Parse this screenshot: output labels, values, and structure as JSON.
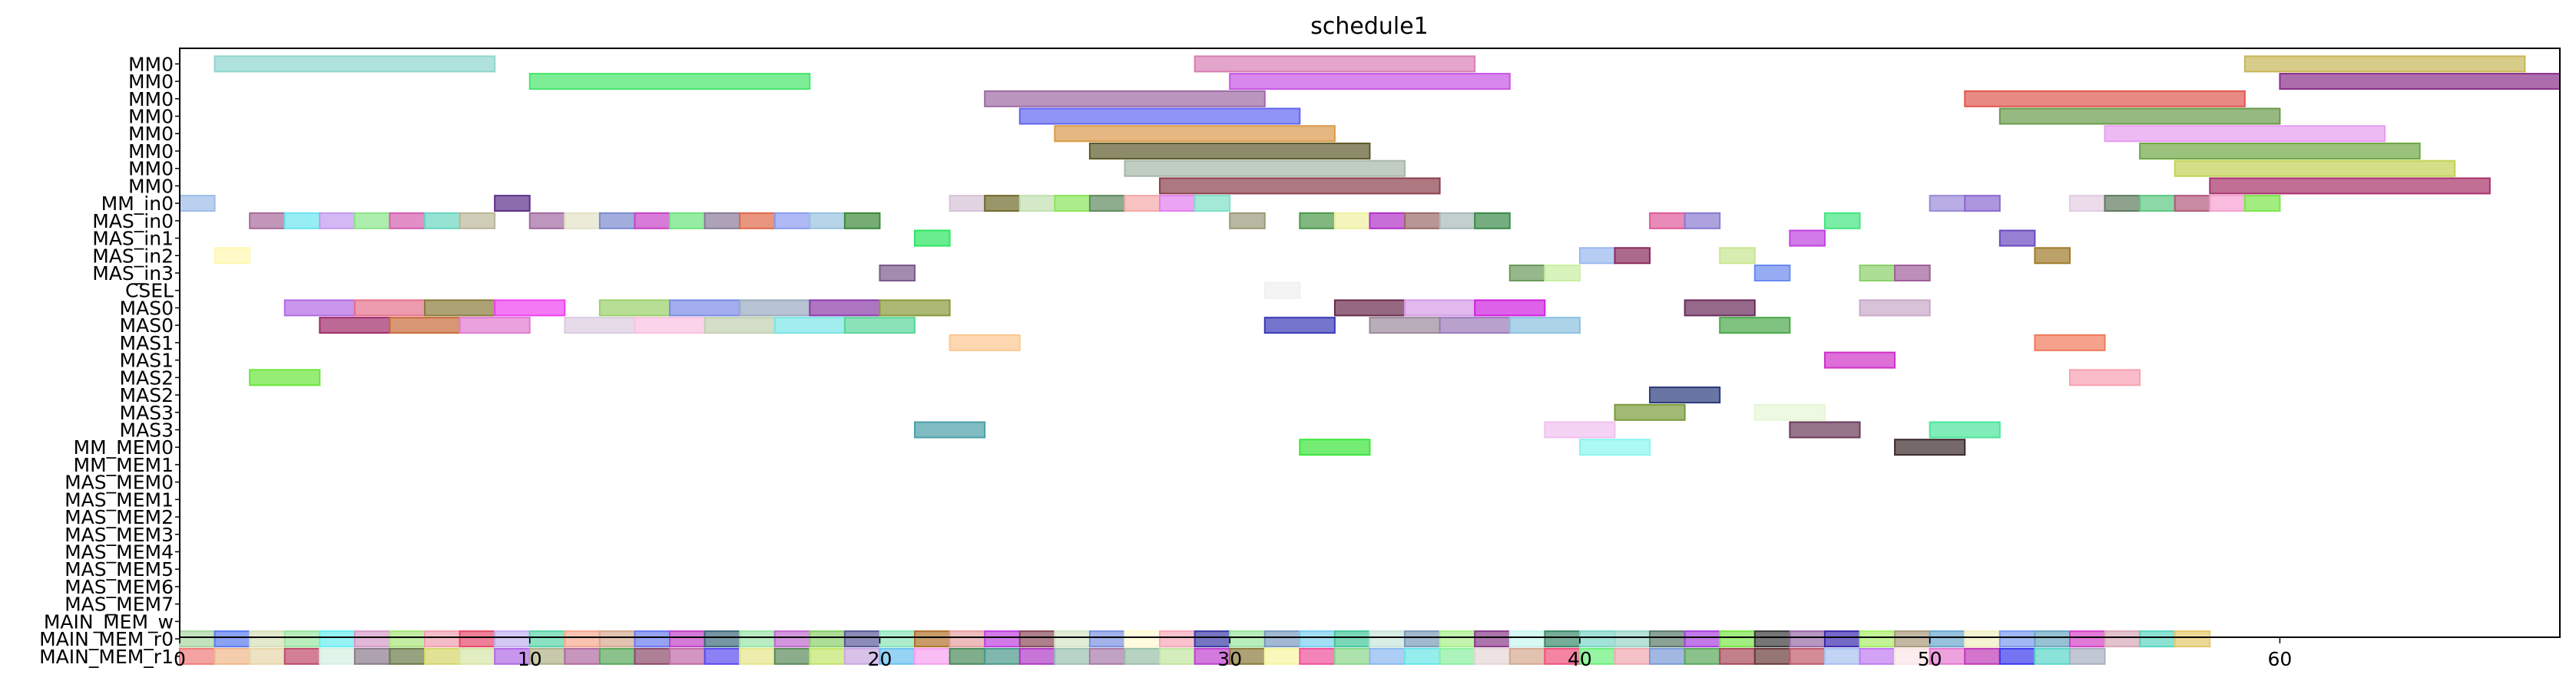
{
  "chart_data": {
    "type": "gantt",
    "title": "schedule1",
    "xlabel": "",
    "ylabel": "",
    "xlim": [
      0,
      68
    ],
    "x_ticks": [
      0,
      10,
      20,
      30,
      40,
      50,
      60
    ],
    "grid": false,
    "legend": "none",
    "rows": [
      "MM0",
      "MM0",
      "MM0",
      "MM0",
      "MM0",
      "MM0",
      "MM0",
      "MM0",
      "MM_in0",
      "MAS_in0",
      "MAS_in1",
      "MAS_in2",
      "MAS_in3",
      "CSEL",
      "MAS0",
      "MAS0",
      "MAS1",
      "MAS1",
      "MAS2",
      "MAS2",
      "MAS3",
      "MAS3",
      "MM_MEM0",
      "MM_MEM1",
      "MAS_MEM0",
      "MAS_MEM1",
      "MAS_MEM2",
      "MAS_MEM3",
      "MAS_MEM4",
      "MAS_MEM5",
      "MAS_MEM6",
      "MAS_MEM7",
      "MAIN_MEM_w",
      "MAIN_MEM_r0",
      "MAIN_MEM_r1"
    ],
    "bars": [
      {
        "row": 0,
        "start": 1,
        "end": 9,
        "color": "#8fd6cf"
      },
      {
        "row": 0,
        "start": 29,
        "end": 37,
        "color": "#d77fb4"
      },
      {
        "row": 0,
        "start": 59,
        "end": 67,
        "color": "#c8b658"
      },
      {
        "row": 1,
        "start": 10,
        "end": 18,
        "color": "#46e66a"
      },
      {
        "row": 1,
        "start": 30,
        "end": 38,
        "color": "#c755e6"
      },
      {
        "row": 1,
        "start": 60,
        "end": 68,
        "color": "#8a2f8a"
      },
      {
        "row": 2,
        "start": 23,
        "end": 31,
        "color": "#9c6aa4"
      },
      {
        "row": 2,
        "start": 51,
        "end": 59,
        "color": "#e0574f"
      },
      {
        "row": 3,
        "start": 24,
        "end": 32,
        "color": "#6166f0"
      },
      {
        "row": 3,
        "start": 52,
        "end": 60,
        "color": "#6a9a4c"
      },
      {
        "row": 4,
        "start": 25,
        "end": 33,
        "color": "#d99a4a"
      },
      {
        "row": 4,
        "start": 55,
        "end": 63,
        "color": "#e79cf0"
      },
      {
        "row": 5,
        "start": 26,
        "end": 34,
        "color": "#5c5a2a"
      },
      {
        "row": 5,
        "start": 56,
        "end": 64,
        "color": "#6fa844"
      },
      {
        "row": 6,
        "start": 27,
        "end": 35,
        "color": "#a6b8a8"
      },
      {
        "row": 6,
        "start": 57,
        "end": 65,
        "color": "#c2d256"
      },
      {
        "row": 7,
        "start": 28,
        "end": 36,
        "color": "#8b3f4c"
      },
      {
        "row": 7,
        "start": 58,
        "end": 66,
        "color": "#a8326a"
      },
      {
        "row": 8,
        "start": 0,
        "end": 1,
        "color": "#9cbce8"
      },
      {
        "row": 8,
        "start": 9,
        "end": 10,
        "color": "#5c2e8a"
      },
      {
        "row": 8,
        "start": 22,
        "end": 23,
        "color": "#d6c2d6"
      },
      {
        "row": 8,
        "start": 23,
        "end": 24,
        "color": "#6e6a2a"
      },
      {
        "row": 8,
        "start": 24,
        "end": 25,
        "color": "#c2e0b0"
      },
      {
        "row": 8,
        "start": 25,
        "end": 26,
        "color": "#8ae65a"
      },
      {
        "row": 8,
        "start": 26,
        "end": 27,
        "color": "#5e8a5e"
      },
      {
        "row": 8,
        "start": 27,
        "end": 28,
        "color": "#f6a8a8"
      },
      {
        "row": 8,
        "start": 28,
        "end": 29,
        "color": "#e27ef0"
      },
      {
        "row": 8,
        "start": 29,
        "end": 30,
        "color": "#7ee0c8"
      },
      {
        "row": 8,
        "start": 50,
        "end": 51,
        "color": "#9a8ad8"
      },
      {
        "row": 8,
        "start": 51,
        "end": 52,
        "color": "#8a6ad0"
      },
      {
        "row": 8,
        "start": 54,
        "end": 55,
        "color": "#e2cce2"
      },
      {
        "row": 8,
        "start": 55,
        "end": 56,
        "color": "#5e7a5e"
      },
      {
        "row": 8,
        "start": 56,
        "end": 57,
        "color": "#5cc882"
      },
      {
        "row": 8,
        "start": 57,
        "end": 58,
        "color": "#b05a7a"
      },
      {
        "row": 8,
        "start": 58,
        "end": 59,
        "color": "#f6a0d0"
      },
      {
        "row": 8,
        "start": 59,
        "end": 60,
        "color": "#7ae64a"
      },
      {
        "row": 9,
        "start": 2,
        "end": 3,
        "color": "#a86a9a"
      },
      {
        "row": 9,
        "start": 3,
        "end": 4,
        "color": "#6ae6f0"
      },
      {
        "row": 9,
        "start": 4,
        "end": 5,
        "color": "#c29af0"
      },
      {
        "row": 9,
        "start": 5,
        "end": 6,
        "color": "#8ae68a"
      },
      {
        "row": 9,
        "start": 6,
        "end": 7,
        "color": "#d660b0"
      },
      {
        "row": 9,
        "start": 7,
        "end": 8,
        "color": "#6ad6c0"
      },
      {
        "row": 9,
        "start": 8,
        "end": 9,
        "color": "#bab69a"
      },
      {
        "row": 9,
        "start": 10,
        "end": 11,
        "color": "#a06aa0"
      },
      {
        "row": 9,
        "start": 11,
        "end": 12,
        "color": "#e2e2c8"
      },
      {
        "row": 9,
        "start": 12,
        "end": 13,
        "color": "#7a8ad0"
      },
      {
        "row": 9,
        "start": 13,
        "end": 14,
        "color": "#c842c8"
      },
      {
        "row": 9,
        "start": 14,
        "end": 15,
        "color": "#6ae67a"
      },
      {
        "row": 9,
        "start": 15,
        "end": 16,
        "color": "#8a7a9a"
      },
      {
        "row": 9,
        "start": 16,
        "end": 17,
        "color": "#e06a4a"
      },
      {
        "row": 9,
        "start": 17,
        "end": 18,
        "color": "#8a9af0"
      },
      {
        "row": 9,
        "start": 18,
        "end": 19,
        "color": "#9ac2e0"
      },
      {
        "row": 9,
        "start": 19,
        "end": 20,
        "color": "#3a8a3a"
      },
      {
        "row": 9,
        "start": 30,
        "end": 31,
        "color": "#9a9a7a"
      },
      {
        "row": 9,
        "start": 32,
        "end": 33,
        "color": "#4a9a4a"
      },
      {
        "row": 9,
        "start": 33,
        "end": 34,
        "color": "#f0f0a0"
      },
      {
        "row": 9,
        "start": 34,
        "end": 35,
        "color": "#b030c8"
      },
      {
        "row": 9,
        "start": 35,
        "end": 36,
        "color": "#9a6a6a"
      },
      {
        "row": 9,
        "start": 36,
        "end": 37,
        "color": "#a8bab8"
      },
      {
        "row": 9,
        "start": 37,
        "end": 38,
        "color": "#3a8a4a"
      },
      {
        "row": 9,
        "start": 42,
        "end": 43,
        "color": "#e05a9a"
      },
      {
        "row": 9,
        "start": 43,
        "end": 44,
        "color": "#8a7ad0"
      },
      {
        "row": 9,
        "start": 47,
        "end": 48,
        "color": "#42e680"
      },
      {
        "row": 10,
        "start": 21,
        "end": 22,
        "color": "#2ae660"
      },
      {
        "row": 10,
        "start": 46,
        "end": 47,
        "color": "#c042e0"
      },
      {
        "row": 10,
        "start": 52,
        "end": 53,
        "color": "#6a4ac0"
      },
      {
        "row": 11,
        "start": 1,
        "end": 2,
        "color": "#fff8b0"
      },
      {
        "row": 11,
        "start": 40,
        "end": 41,
        "color": "#9ab8f0"
      },
      {
        "row": 11,
        "start": 41,
        "end": 42,
        "color": "#8a2a5a"
      },
      {
        "row": 11,
        "start": 44,
        "end": 45,
        "color": "#c8e690"
      },
      {
        "row": 11,
        "start": 53,
        "end": 54,
        "color": "#a07a2a"
      },
      {
        "row": 12,
        "start": 20,
        "end": 21,
        "color": "#7a5a8a"
      },
      {
        "row": 12,
        "start": 38,
        "end": 39,
        "color": "#6a9a5a"
      },
      {
        "row": 12,
        "start": 39,
        "end": 40,
        "color": "#c8f0a0"
      },
      {
        "row": 12,
        "start": 45,
        "end": 46,
        "color": "#6a8af0"
      },
      {
        "row": 12,
        "start": 48,
        "end": 49,
        "color": "#8ad06a"
      },
      {
        "row": 12,
        "start": 49,
        "end": 50,
        "color": "#a0609a"
      },
      {
        "row": 13,
        "start": 31,
        "end": 32,
        "color": "#f0f0f0"
      },
      {
        "row": 14,
        "start": 3,
        "end": 5,
        "color": "#b36ae6"
      },
      {
        "row": 14,
        "start": 5,
        "end": 7,
        "color": "#e6708c"
      },
      {
        "row": 14,
        "start": 7,
        "end": 9,
        "color": "#8a7a3a"
      },
      {
        "row": 14,
        "start": 9,
        "end": 11,
        "color": "#f040f0"
      },
      {
        "row": 14,
        "start": 12,
        "end": 14,
        "color": "#9ad06a"
      },
      {
        "row": 14,
        "start": 14,
        "end": 16,
        "color": "#7a8ae6"
      },
      {
        "row": 14,
        "start": 16,
        "end": 18,
        "color": "#9aaac0"
      },
      {
        "row": 14,
        "start": 18,
        "end": 20,
        "color": "#8a3aa8"
      },
      {
        "row": 14,
        "start": 20,
        "end": 22,
        "color": "#8a9a3a"
      },
      {
        "row": 14,
        "start": 33,
        "end": 35,
        "color": "#6a2a4a"
      },
      {
        "row": 14,
        "start": 35,
        "end": 37,
        "color": "#d69ae6"
      },
      {
        "row": 14,
        "start": 37,
        "end": 39,
        "color": "#d020e0"
      },
      {
        "row": 14,
        "start": 43,
        "end": 45,
        "color": "#6a2a5a"
      },
      {
        "row": 14,
        "start": 48,
        "end": 50,
        "color": "#c8a8c8"
      },
      {
        "row": 15,
        "start": 4,
        "end": 6,
        "color": "#a02a6a"
      },
      {
        "row": 15,
        "start": 6,
        "end": 8,
        "color": "#c86a3a"
      },
      {
        "row": 15,
        "start": 8,
        "end": 10,
        "color": "#e07ad0"
      },
      {
        "row": 15,
        "start": 11,
        "end": 13,
        "color": "#dccce0"
      },
      {
        "row": 15,
        "start": 13,
        "end": 15,
        "color": "#fac2e0"
      },
      {
        "row": 15,
        "start": 15,
        "end": 17,
        "color": "#c2d0b0"
      },
      {
        "row": 15,
        "start": 17,
        "end": 19,
        "color": "#7ae6e6"
      },
      {
        "row": 15,
        "start": 19,
        "end": 21,
        "color": "#5ad69a"
      },
      {
        "row": 15,
        "start": 31,
        "end": 33,
        "color": "#3a3ab8"
      },
      {
        "row": 15,
        "start": 34,
        "end": 36,
        "color": "#9a8a9a"
      },
      {
        "row": 15,
        "start": 36,
        "end": 38,
        "color": "#9a7ab8"
      },
      {
        "row": 15,
        "start": 38,
        "end": 40,
        "color": "#8ac0e0"
      },
      {
        "row": 15,
        "start": 44,
        "end": 46,
        "color": "#4aa84a"
      },
      {
        "row": 16,
        "start": 22,
        "end": 24,
        "color": "#fcc890"
      },
      {
        "row": 16,
        "start": 53,
        "end": 55,
        "color": "#f07a5a"
      },
      {
        "row": 17,
        "start": 47,
        "end": 49,
        "color": "#d030c8"
      },
      {
        "row": 18,
        "start": 2,
        "end": 4,
        "color": "#6ae63a"
      },
      {
        "row": 18,
        "start": 54,
        "end": 56,
        "color": "#f8a0b0"
      },
      {
        "row": 19,
        "start": 42,
        "end": 44,
        "color": "#2a3a7a"
      },
      {
        "row": 20,
        "start": 41,
        "end": 43,
        "color": "#7a9a3a"
      },
      {
        "row": 20,
        "start": 45,
        "end": 47,
        "color": "#e6f6d6"
      },
      {
        "row": 21,
        "start": 21,
        "end": 23,
        "color": "#4aa0a8"
      },
      {
        "row": 21,
        "start": 39,
        "end": 41,
        "color": "#f0c0f0"
      },
      {
        "row": 21,
        "start": 46,
        "end": 48,
        "color": "#6a3a5a"
      },
      {
        "row": 21,
        "start": 50,
        "end": 52,
        "color": "#4ae69a"
      },
      {
        "row": 22,
        "start": 32,
        "end": 34,
        "color": "#3ae63a"
      },
      {
        "row": 22,
        "start": 40,
        "end": 42,
        "color": "#8af6f0"
      },
      {
        "row": 22,
        "start": 49,
        "end": 51,
        "color": "#3a2a2a"
      }
    ],
    "mem_rows": [
      {
        "row": 33,
        "colors": [
          "#a8d6a0",
          "#5a7af0",
          "#d6e0b8",
          "#9ae6a0",
          "#6aeef0",
          "#d69ac8",
          "#a8e67a",
          "#f0a0b0",
          "#e64a6a",
          "#c2b0f0",
          "#5ad6a8",
          "#f6a890",
          "#d6a890",
          "#6a7af0",
          "#c242c8",
          "#3a6a7a",
          "#9ae6a8",
          "#c06ad0",
          "#8ad06a",
          "#5a5a9a",
          "#8ae6b8",
          "#b0702a",
          "#e6a0a0",
          "#c042e0",
          "#8a4a5a",
          "#d6e6c8",
          "#7a90e0",
          "#fffad0",
          "#f6a8b8",
          "#3a3aa8",
          "#9ae6a0",
          "#7a9ac0",
          "#7ad0f0",
          "#42c89a",
          "#c8e6d8",
          "#7a9ab8",
          "#a8f08a",
          "#8a3a8a",
          "#c8f6f0",
          "#3a8a6a",
          "#7ad6c8",
          "#9ad6c8",
          "#5a7a6a",
          "#a842e0",
          "#7ae64a",
          "#3a3a3a",
          "#9a6aa8",
          "#3a2ab0",
          "#a8f06a",
          "#a89a7a",
          "#6aa8d0",
          "#f0f0c0",
          "#7a9af0",
          "#6aa8c0",
          "#d642c8",
          "#d6a8b8",
          "#5ad6c0",
          "#e6c86a"
        ]
      },
      {
        "row": 34,
        "colors": [
          "#f07a7a",
          "#f0b88a",
          "#e6d6a8",
          "#c04a6a",
          "#d6f0e0",
          "#8a7a8a",
          "#6a7a4a",
          "#d6d66a",
          "#d6e6a8",
          "#b06ae6",
          "#b0b08a",
          "#b06aa0",
          "#5aa85a",
          "#8a4a6a",
          "#c06aa8",
          "#5a4af0",
          "#e6e68a",
          "#5a8a5a",
          "#c2e66a",
          "#c8a8e0",
          "#6ac0f0",
          "#f6a0f0",
          "#4a8a5a",
          "#4a9a8a",
          "#b03ac8",
          "#9ac0b0",
          "#a87aa8",
          "#9ac0a8",
          "#c2e6a0",
          "#c042d0",
          "#8a7a3a",
          "#f6f6a0",
          "#f0509a",
          "#8ad68a",
          "#8ab8f0",
          "#6ae6e6",
          "#8af0a0",
          "#e6d6d6",
          "#d6a890",
          "#f0507a",
          "#6af07a",
          "#f0a8b0",
          "#7a9ad6",
          "#5aa85a",
          "#a84a5a",
          "#6a3a3a",
          "#c05a6a",
          "#a8c0f0",
          "#c07af0",
          "#fae6e6",
          "#e67ad0",
          "#c03ab8",
          "#3a3af0",
          "#5ad6c8",
          "#a8b0c0"
        ]
      }
    ]
  }
}
